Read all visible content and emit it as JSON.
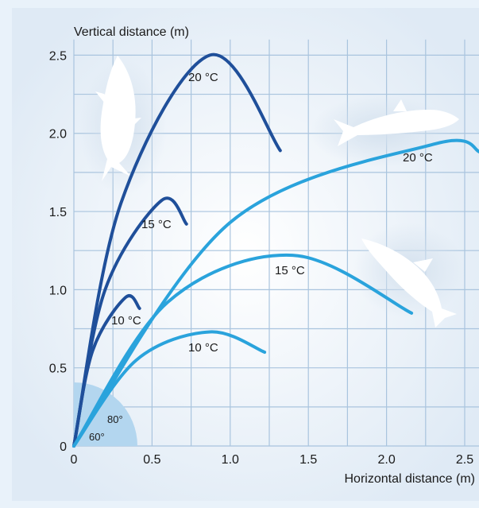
{
  "chart_data": {
    "type": "line",
    "xlabel": "Horizontal distance (m)",
    "ylabel": "Vertical distance (m)",
    "xlim": [
      0,
      2.5
    ],
    "ylim": [
      0,
      2.5
    ],
    "x_ticks": [
      "0",
      "0.5",
      "1.0",
      "1.5",
      "2.0",
      "2.5"
    ],
    "y_ticks": [
      "0",
      "0.5",
      "1.0",
      "1.5",
      "2.0",
      "2.5"
    ],
    "grid": true,
    "launch_angles": [
      "60°",
      "80°"
    ],
    "colors": {
      "angle80": "#1f4f9a",
      "angle60": "#2aa3dc",
      "grid": "#a9c4de",
      "arc_fill": "#b3d6ef"
    },
    "series": [
      {
        "angle": "80°",
        "label": "20 °C",
        "x": [
          0,
          0.3,
          0.87,
          1.32
        ],
        "y": [
          0,
          1.55,
          2.5,
          1.89
        ]
      },
      {
        "angle": "80°",
        "label": "15 °C",
        "x": [
          0,
          0.2,
          0.56,
          0.72
        ],
        "y": [
          0,
          1.0,
          1.57,
          1.42
        ]
      },
      {
        "angle": "80°",
        "label": "10 °C",
        "x": [
          0,
          0.12,
          0.33,
          0.42
        ],
        "y": [
          0,
          0.61,
          0.95,
          0.88
        ]
      },
      {
        "angle": "60°",
        "label": "20 °C",
        "x": [
          0,
          1.0,
          2.3,
          2.6
        ],
        "y": [
          0,
          1.43,
          1.93,
          1.88
        ]
      },
      {
        "angle": "60°",
        "label": "15 °C",
        "x": [
          0,
          0.6,
          1.4,
          2.16
        ],
        "y": [
          0,
          0.92,
          1.22,
          0.85
        ]
      },
      {
        "angle": "60°",
        "label": "10 °C",
        "x": [
          0,
          0.4,
          0.87,
          1.22
        ],
        "y": [
          0,
          0.55,
          0.73,
          0.6
        ]
      }
    ]
  }
}
